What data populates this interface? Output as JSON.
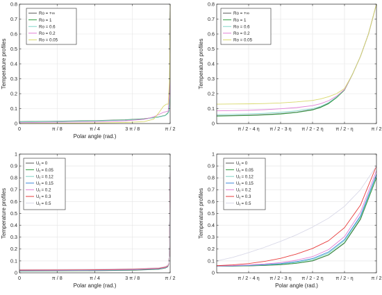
{
  "chart_data": [
    {
      "type": "line",
      "title": "",
      "xlabel": "Polar angle (rad.)",
      "ylabel": "Temperature profiles",
      "xlim": [
        0,
        1.5708
      ],
      "ylim": [
        0,
        0.8
      ],
      "xticks": [
        0,
        0.3927,
        0.7854,
        1.1781,
        1.5708
      ],
      "xtick_labels": [
        "0",
        "π / 8",
        "π / 4",
        "3 π / 8",
        "π / 2"
      ],
      "yticks": [
        0,
        0.1,
        0.2,
        0.3,
        0.4,
        0.5,
        0.6,
        0.7,
        0.8
      ],
      "ytick_labels": [
        "0",
        "0.1",
        "0.2",
        "0.3",
        "0.4",
        "0.5",
        "0.6",
        "0.7",
        "0.8"
      ],
      "grid": true,
      "legend_position": "top-left",
      "series": [
        {
          "name": "Ro = +∞",
          "color": "#555555",
          "x": [
            0,
            0.4,
            0.8,
            1.1,
            1.3,
            1.45,
            1.52,
            1.545,
            1.555,
            1.56,
            1.565,
            1.5708
          ],
          "y": [
            0.013,
            0.016,
            0.02,
            0.025,
            0.032,
            0.045,
            0.055,
            0.07,
            0.08,
            0.09,
            0.2,
            0.8
          ]
        },
        {
          "name": "Ro = 1",
          "color": "#2e9e3e",
          "x": [
            0,
            0.4,
            0.8,
            1.1,
            1.3,
            1.45,
            1.52,
            1.545,
            1.555,
            1.56,
            1.565,
            1.5708
          ],
          "y": [
            0.012,
            0.015,
            0.019,
            0.024,
            0.031,
            0.044,
            0.054,
            0.068,
            0.078,
            0.088,
            0.2,
            0.8
          ]
        },
        {
          "name": "Ro = 0.6",
          "color": "#7fd6c8",
          "x": [
            0,
            0.4,
            0.8,
            1.1,
            1.3,
            1.45,
            1.52,
            1.545,
            1.555,
            1.56,
            1.565,
            1.5708
          ],
          "y": [
            0.011,
            0.014,
            0.018,
            0.023,
            0.03,
            0.043,
            0.053,
            0.066,
            0.076,
            0.086,
            0.2,
            0.8
          ]
        },
        {
          "name": "Ro = 0.2",
          "color": "#e07fd6",
          "x": [
            0,
            0.4,
            0.8,
            1.1,
            1.3,
            1.4,
            1.45,
            1.5,
            1.53,
            1.55,
            1.565,
            1.5708
          ],
          "y": [
            0.006,
            0.009,
            0.012,
            0.018,
            0.028,
            0.045,
            0.06,
            0.075,
            0.08,
            0.083,
            0.2,
            0.8
          ]
        },
        {
          "name": "Ro = 0.05",
          "color": "#d8d86a",
          "x": [
            0,
            0.4,
            0.8,
            1.1,
            1.3,
            1.4,
            1.45,
            1.5,
            1.53,
            1.55,
            1.565,
            1.5708
          ],
          "y": [
            0.001,
            0.002,
            0.004,
            0.007,
            0.013,
            0.03,
            0.07,
            0.115,
            0.13,
            0.13,
            0.3,
            0.8
          ]
        }
      ]
    },
    {
      "type": "line",
      "title": "",
      "xlabel": "",
      "ylabel": "Temperature profiles",
      "xlim": [
        -5,
        0
      ],
      "ylim": [
        0,
        0.8
      ],
      "xticks": [
        -4,
        -3,
        -2,
        -1,
        0
      ],
      "xtick_labels": [
        "π / 2 - 4 η",
        "π / 2 - 3 η",
        "π / 2 - 2 η",
        "π / 2 - η",
        "π / 2"
      ],
      "yticks": [
        0,
        0.1,
        0.2,
        0.3,
        0.4,
        0.5,
        0.6,
        0.7,
        0.8
      ],
      "ytick_labels": [
        "0",
        "0.1",
        "0.2",
        "0.3",
        "0.4",
        "0.5",
        "0.6",
        "0.7",
        "0.8"
      ],
      "grid": true,
      "legend_position": "top-left",
      "series": [
        {
          "name": "Ro = +∞",
          "color": "#555555",
          "x": [
            -5,
            -4.5,
            -4,
            -3.5,
            -3,
            -2.5,
            -2,
            -1.75,
            -1.5,
            -1.25,
            -1,
            -0.75,
            -0.5,
            -0.25,
            0
          ],
          "y": [
            0.052,
            0.054,
            0.056,
            0.06,
            0.066,
            0.076,
            0.093,
            0.11,
            0.135,
            0.175,
            0.225,
            0.33,
            0.45,
            0.6,
            0.8
          ]
        },
        {
          "name": "Ro = 1",
          "color": "#2e9e3e",
          "x": [
            -5,
            -4.5,
            -4,
            -3.5,
            -3,
            -2.5,
            -2,
            -1.75,
            -1.5,
            -1.25,
            -1,
            -0.75,
            -0.5,
            -0.25,
            0
          ],
          "y": [
            0.05,
            0.052,
            0.054,
            0.058,
            0.064,
            0.074,
            0.091,
            0.108,
            0.133,
            0.173,
            0.225,
            0.33,
            0.45,
            0.6,
            0.8
          ]
        },
        {
          "name": "Ro = 0.6",
          "color": "#7fd6c8",
          "x": [
            -5,
            -4.5,
            -4,
            -3.5,
            -3,
            -2.5,
            -2,
            -1.75,
            -1.5,
            -1.25,
            -1,
            -0.75,
            -0.5,
            -0.25,
            0
          ],
          "y": [
            0.06,
            0.062,
            0.065,
            0.069,
            0.075,
            0.085,
            0.1,
            0.115,
            0.14,
            0.178,
            0.228,
            0.332,
            0.45,
            0.6,
            0.8
          ]
        },
        {
          "name": "Ro = 0.2",
          "color": "#e07fd6",
          "x": [
            -5,
            -4.5,
            -4,
            -3.5,
            -3,
            -2.5,
            -2,
            -1.75,
            -1.5,
            -1.25,
            -1,
            -0.75,
            -0.5,
            -0.25,
            0
          ],
          "y": [
            0.085,
            0.087,
            0.089,
            0.093,
            0.099,
            0.107,
            0.12,
            0.133,
            0.153,
            0.183,
            0.228,
            0.33,
            0.45,
            0.6,
            0.8
          ]
        },
        {
          "name": "Ro = 0.05",
          "color": "#d8d86a",
          "x": [
            -5,
            -4.5,
            -4,
            -3.5,
            -3,
            -2.5,
            -2,
            -1.75,
            -1.5,
            -1.25,
            -1,
            -0.75,
            -0.5,
            -0.25,
            0
          ],
          "y": [
            0.13,
            0.131,
            0.132,
            0.134,
            0.138,
            0.145,
            0.155,
            0.165,
            0.18,
            0.2,
            0.235,
            0.33,
            0.45,
            0.6,
            0.8
          ]
        }
      ]
    },
    {
      "type": "line",
      "title": "",
      "xlabel": "Polar angle (rad.)",
      "ylabel": "Temperature profiles",
      "xlim": [
        0,
        1.5708
      ],
      "ylim": [
        0,
        1
      ],
      "xticks": [
        0,
        0.3927,
        0.7854,
        1.1781,
        1.5708
      ],
      "xtick_labels": [
        "0",
        "π / 8",
        "π / 4",
        "3 π / 8",
        "π / 2"
      ],
      "yticks": [
        0,
        0.1,
        0.2,
        0.3,
        0.4,
        0.5,
        0.6,
        0.7,
        0.8,
        0.9,
        1
      ],
      "ytick_labels": [
        "0",
        "0.1",
        "0.2",
        "0.3",
        "0.4",
        "0.5",
        "0.6",
        "0.7",
        "0.8",
        "0.9",
        "1"
      ],
      "grid": true,
      "legend_position": "top-left",
      "series": [
        {
          "name": "U_f = 0",
          "color": "#555555",
          "x": [
            0,
            0.4,
            0.8,
            1.2,
            1.45,
            1.52,
            1.545,
            1.555,
            1.562,
            1.567,
            1.5708
          ],
          "y": [
            0.015,
            0.016,
            0.018,
            0.022,
            0.03,
            0.04,
            0.05,
            0.07,
            0.15,
            0.45,
            0.9
          ]
        },
        {
          "name": "U_f = 0.05",
          "color": "#2e9e3e",
          "x": [
            0,
            0.4,
            0.8,
            1.2,
            1.45,
            1.52,
            1.545,
            1.555,
            1.562,
            1.567,
            1.5708
          ],
          "y": [
            0.016,
            0.017,
            0.019,
            0.023,
            0.031,
            0.041,
            0.051,
            0.071,
            0.15,
            0.45,
            0.9
          ]
        },
        {
          "name": "U_f = 0.12",
          "color": "#7fd6c8",
          "x": [
            0,
            0.4,
            0.8,
            1.2,
            1.45,
            1.52,
            1.545,
            1.555,
            1.562,
            1.567,
            1.5708
          ],
          "y": [
            0.018,
            0.019,
            0.021,
            0.025,
            0.033,
            0.043,
            0.053,
            0.073,
            0.15,
            0.45,
            0.9
          ]
        },
        {
          "name": "U_f = 0.15",
          "color": "#3a86d8",
          "x": [
            0,
            0.4,
            0.8,
            1.2,
            1.45,
            1.52,
            1.545,
            1.555,
            1.562,
            1.567,
            1.5708
          ],
          "y": [
            0.019,
            0.02,
            0.022,
            0.026,
            0.034,
            0.044,
            0.054,
            0.074,
            0.15,
            0.45,
            0.9
          ]
        },
        {
          "name": "U_f = 0.2",
          "color": "#e07fd6",
          "x": [
            0,
            0.4,
            0.8,
            1.2,
            1.45,
            1.52,
            1.545,
            1.555,
            1.562,
            1.567,
            1.5708
          ],
          "y": [
            0.021,
            0.022,
            0.024,
            0.028,
            0.036,
            0.046,
            0.056,
            0.076,
            0.15,
            0.45,
            0.9
          ]
        },
        {
          "name": "U_f = 0.3",
          "color": "#e83b3b",
          "x": [
            0,
            0.4,
            0.8,
            1.2,
            1.45,
            1.52,
            1.545,
            1.555,
            1.562,
            1.567,
            1.5708
          ],
          "y": [
            0.024,
            0.025,
            0.027,
            0.031,
            0.039,
            0.049,
            0.059,
            0.079,
            0.15,
            0.45,
            0.9
          ]
        },
        {
          "name": "U_f = 0.5",
          "color": "#d9d9e8",
          "x": [
            0,
            0.4,
            0.8,
            1.2,
            1.45,
            1.52,
            1.545,
            1.555,
            1.562,
            1.567,
            1.5708
          ],
          "y": [
            0.028,
            0.029,
            0.031,
            0.035,
            0.043,
            0.053,
            0.063,
            0.083,
            0.15,
            0.45,
            0.9
          ]
        }
      ]
    },
    {
      "type": "line",
      "title": "",
      "xlabel": "Polar angle (rad.)",
      "ylabel": "Temperature profiles",
      "xlim": [
        -5,
        0
      ],
      "ylim": [
        0,
        1
      ],
      "xticks": [
        -4,
        -3,
        -2,
        -1,
        0
      ],
      "xtick_labels": [
        "π / 2 - 4 η",
        "π / 2 - 3 η",
        "π / 2 - 2 η",
        "π / 2 - η",
        "π / 2"
      ],
      "yticks": [
        0,
        0.1,
        0.2,
        0.3,
        0.4,
        0.5,
        0.6,
        0.7,
        0.8,
        0.9,
        1
      ],
      "ytick_labels": [
        "0",
        "0.1",
        "0.2",
        "0.3",
        "0.4",
        "0.5",
        "0.6",
        "0.7",
        "0.8",
        "0.9",
        "1"
      ],
      "grid": true,
      "legend_position": "top-left",
      "series": [
        {
          "name": "U_f = 0",
          "color": "#555555",
          "x": [
            -5,
            -4.5,
            -4,
            -3.5,
            -3,
            -2.5,
            -2,
            -1.5,
            -1,
            -0.5,
            0
          ],
          "y": [
            0.055,
            0.056,
            0.058,
            0.062,
            0.068,
            0.08,
            0.1,
            0.15,
            0.25,
            0.45,
            0.8
          ]
        },
        {
          "name": "U_f = 0.05",
          "color": "#2e9e3e",
          "x": [
            -5,
            -4.5,
            -4,
            -3.5,
            -3,
            -2.5,
            -2,
            -1.5,
            -1,
            -0.5,
            0
          ],
          "y": [
            0.056,
            0.057,
            0.059,
            0.063,
            0.069,
            0.081,
            0.102,
            0.152,
            0.253,
            0.455,
            0.8
          ]
        },
        {
          "name": "U_f = 0.12",
          "color": "#7fd6c8",
          "x": [
            -5,
            -4.5,
            -4,
            -3.5,
            -3,
            -2.5,
            -2,
            -1.5,
            -1,
            -0.5,
            0
          ],
          "y": [
            0.056,
            0.058,
            0.061,
            0.066,
            0.074,
            0.088,
            0.112,
            0.165,
            0.27,
            0.47,
            0.82
          ]
        },
        {
          "name": "U_f = 0.15",
          "color": "#3a86d8",
          "x": [
            -5,
            -4.5,
            -4,
            -3.5,
            -3,
            -2.5,
            -2,
            -1.5,
            -1,
            -0.5,
            0
          ],
          "y": [
            0.057,
            0.059,
            0.063,
            0.069,
            0.078,
            0.094,
            0.12,
            0.175,
            0.28,
            0.48,
            0.83
          ]
        },
        {
          "name": "U_f = 0.2",
          "color": "#e07fd6",
          "x": [
            -5,
            -4.5,
            -4,
            -3.5,
            -3,
            -2.5,
            -2,
            -1.5,
            -1,
            -0.5,
            0
          ],
          "y": [
            0.058,
            0.061,
            0.066,
            0.074,
            0.086,
            0.106,
            0.136,
            0.195,
            0.305,
            0.51,
            0.86
          ]
        },
        {
          "name": "U_f = 0.3",
          "color": "#e83b3b",
          "x": [
            -5,
            -4.5,
            -4,
            -3.5,
            -3,
            -2.5,
            -2,
            -1.5,
            -1,
            -0.5,
            0
          ],
          "y": [
            0.06,
            0.067,
            0.078,
            0.096,
            0.122,
            0.158,
            0.205,
            0.27,
            0.38,
            0.57,
            0.9
          ]
        },
        {
          "name": "U_f = 0.5",
          "color": "#d9d9e8",
          "x": [
            -5,
            -4.5,
            -4,
            -3.5,
            -3,
            -2.5,
            -2,
            -1.5,
            -1,
            -0.5,
            0
          ],
          "y": [
            0.1,
            0.13,
            0.17,
            0.215,
            0.265,
            0.32,
            0.385,
            0.46,
            0.56,
            0.7,
            0.9
          ]
        }
      ]
    }
  ]
}
